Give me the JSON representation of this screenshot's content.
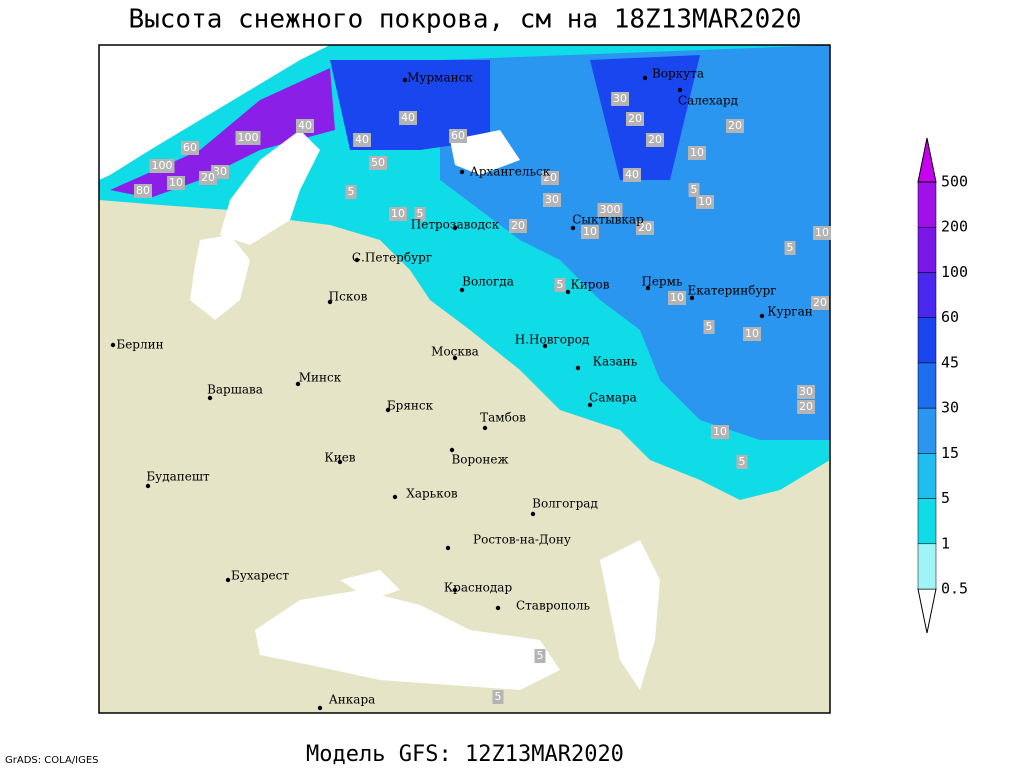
{
  "title": "Высота снежного покрова, см на 18Z13MAR2020",
  "footer": "Модель GFS: 12Z13MAR2020",
  "credit": "GrADS: COLA/IGES",
  "cities": [
    "Мурманск",
    "Воркута",
    "Салехард",
    "Архангельск",
    "Петрозаводск",
    "Сыктывкар",
    "С.Петербург",
    "Вологда",
    "Киров",
    "Пермь",
    "Екатеринбург",
    "Псков",
    "Курган",
    "Берлин",
    "Н.Новгород",
    "Москва",
    "Казань",
    "Варшава",
    "Минск",
    "Самара",
    "Брянск",
    "Тамбов",
    "Киев",
    "Воронеж",
    "Будапешт",
    "Харьков",
    "Волгоград",
    "Ростов-на-Дону",
    "Бухарест",
    "Краснодар",
    "Ставрополь",
    "Анкара"
  ],
  "contour_labels": [
    100,
    100,
    60,
    40,
    40,
    40,
    60,
    50,
    30,
    20,
    10,
    80,
    5,
    10,
    5,
    20,
    30,
    20,
    300,
    10,
    20,
    40,
    30,
    20,
    20,
    20,
    10,
    5,
    10,
    5,
    10,
    5,
    10,
    5,
    20,
    10,
    30,
    20,
    10,
    5,
    5,
    5
  ],
  "legend": {
    "levels": [
      0.5,
      1,
      5,
      15,
      30,
      45,
      60,
      100,
      200,
      500
    ],
    "colors": [
      "#ffffff",
      "#a0f4f8",
      "#10dce8",
      "#20bef0",
      "#2a96f0",
      "#1e6ef0",
      "#1a46f0",
      "#4a28f0",
      "#7a18e8",
      "#a010e8",
      "#c800f0"
    ]
  }
}
